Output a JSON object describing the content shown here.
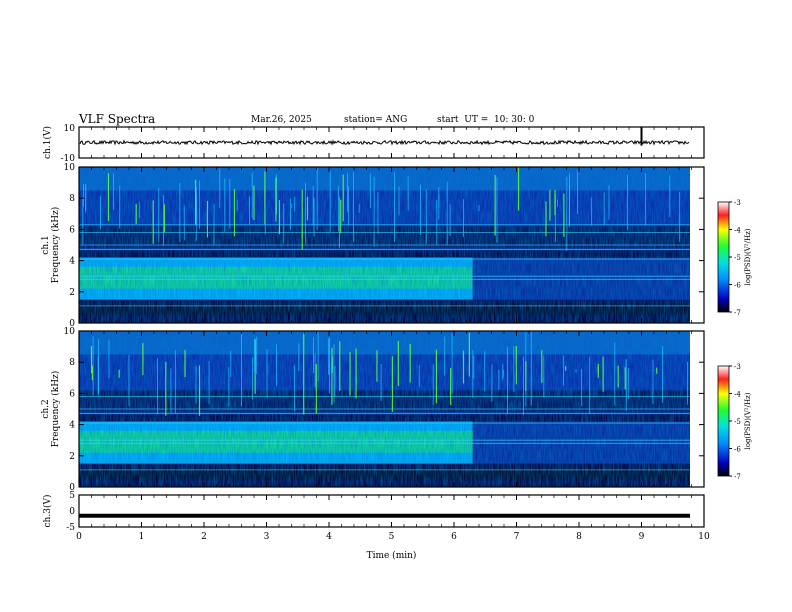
{
  "header": {
    "title": "VLF Spectra",
    "date": "Mar.26, 2025",
    "station": "station= ANG",
    "start": "start  UT =  10: 30: 0"
  },
  "colors": {
    "background": "#000040",
    "low": "#00008b",
    "mid": "#00c8ff",
    "high": "#22ff44",
    "trace": "#000000"
  },
  "chart_data": [
    {
      "type": "line",
      "ylabel": "ch.1(V)",
      "ylim": [
        -10,
        10
      ],
      "yticks": [
        "10",
        "-10"
      ],
      "xlim": [
        0,
        10
      ],
      "note_shape": "noisy waveform around 0 with amplitude about 1 V; spike near t=9 min"
    },
    {
      "type": "heatmap",
      "ylabel_top": "ch.1",
      "ylabel": "Frequency  (kHz)",
      "ylim": [
        0,
        10
      ],
      "yticks": [
        "0",
        "2",
        "4",
        "6",
        "8",
        "10"
      ],
      "xlim": [
        0,
        10
      ],
      "colorbar": {
        "label": "log(PSD)(V²/Hz)",
        "ticks": [
          "-3",
          "-4",
          "-5",
          "-6",
          "-7"
        ],
        "range": [
          -7,
          -3
        ]
      },
      "bands": [
        {
          "from_khz": 0.5,
          "to_khz": 1.2,
          "level": "low"
        },
        {
          "from_khz": 1.5,
          "to_khz": 4.2,
          "level": "high",
          "until_min": 6.3
        },
        {
          "from_khz": 1.5,
          "to_khz": 4.2,
          "level": "low",
          "from_min": 6.3
        },
        {
          "from_khz": 4.7,
          "to_khz": 10,
          "level": "low"
        }
      ],
      "lines_khz": [
        1.1,
        2.8,
        3.0,
        4.1,
        4.7,
        5.0,
        5.8,
        6.3
      ]
    },
    {
      "type": "heatmap",
      "ylabel_top": "ch.2",
      "ylabel": "Frequency  (kHz)",
      "ylim": [
        0,
        10
      ],
      "yticks": [
        "0",
        "2",
        "4",
        "6",
        "8",
        "10"
      ],
      "xlim": [
        0,
        10
      ],
      "colorbar": {
        "label": "log(PSD)(V²/Hz)",
        "ticks": [
          "-3",
          "-4",
          "-5",
          "-6",
          "-7"
        ],
        "range": [
          -7,
          -3
        ]
      },
      "bands": [
        {
          "from_khz": 0.5,
          "to_khz": 1.2,
          "level": "low"
        },
        {
          "from_khz": 1.5,
          "to_khz": 4.2,
          "level": "high",
          "until_min": 6.3
        },
        {
          "from_khz": 1.5,
          "to_khz": 4.2,
          "level": "low",
          "from_min": 6.3
        },
        {
          "from_khz": 4.7,
          "to_khz": 10,
          "level": "low"
        }
      ],
      "lines_khz": [
        1.1,
        2.8,
        3.0,
        4.1,
        4.7,
        5.0,
        5.8
      ]
    },
    {
      "type": "line",
      "ylabel": "ch.3(V)",
      "ylim": [
        -5,
        5
      ],
      "yticks": [
        "5",
        "0",
        "-5"
      ],
      "xlim": [
        0,
        10
      ],
      "constant_value": -1.5
    }
  ],
  "x_axis": {
    "label": "Time  (min)",
    "ticks": [
      "0",
      "1",
      "2",
      "3",
      "4",
      "5",
      "6",
      "7",
      "8",
      "9",
      "10"
    ]
  }
}
